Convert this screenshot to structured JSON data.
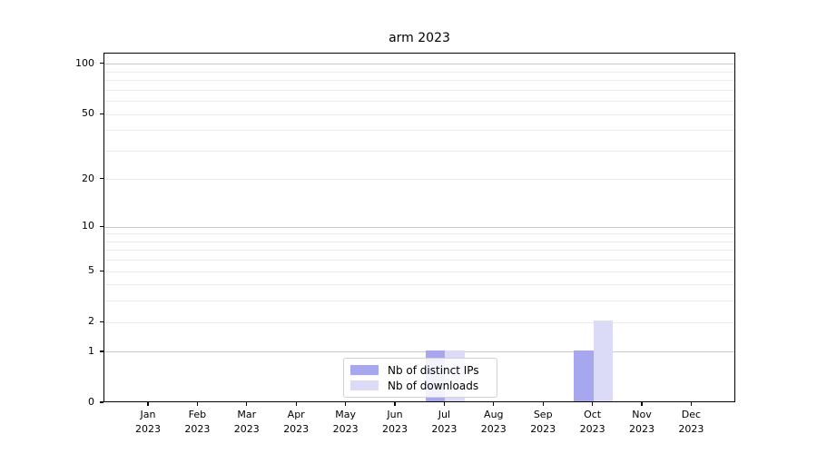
{
  "chart_data": {
    "type": "bar",
    "title": "arm 2023",
    "x_tick_months": [
      "Jan",
      "Feb",
      "Mar",
      "Apr",
      "May",
      "Jun",
      "Jul",
      "Aug",
      "Sep",
      "Oct",
      "Nov",
      "Dec"
    ],
    "x_tick_year": "2023",
    "series": [
      {
        "name": "Nb of distinct IPs",
        "color": "#a7a7f0",
        "values": [
          0,
          0,
          0,
          0,
          0,
          0,
          1,
          0,
          0,
          1,
          0,
          0
        ]
      },
      {
        "name": "Nb of downloads",
        "color": "#dbdbf8",
        "values": [
          0,
          0,
          0,
          0,
          0,
          0,
          1,
          0,
          0,
          2,
          0,
          0
        ]
      }
    ],
    "y_scale": "log1p",
    "ylim": [
      0,
      116
    ],
    "y_tick_values": [
      0,
      1,
      2,
      5,
      10,
      20,
      50,
      100
    ],
    "y_major_gridlines": [
      1,
      10,
      100
    ],
    "y_minor_gridlines": [
      2,
      3,
      4,
      5,
      6,
      7,
      8,
      9,
      20,
      30,
      40,
      50,
      60,
      70,
      80,
      90
    ],
    "grid": true,
    "legend_position": "lower center-right"
  },
  "colors": {
    "background": "#ffffff",
    "axis": "#000000",
    "major_grid": "#c9c9c9",
    "minor_grid": "#ebebeb",
    "legend_border": "#d2d2d2",
    "text": "#000000"
  }
}
